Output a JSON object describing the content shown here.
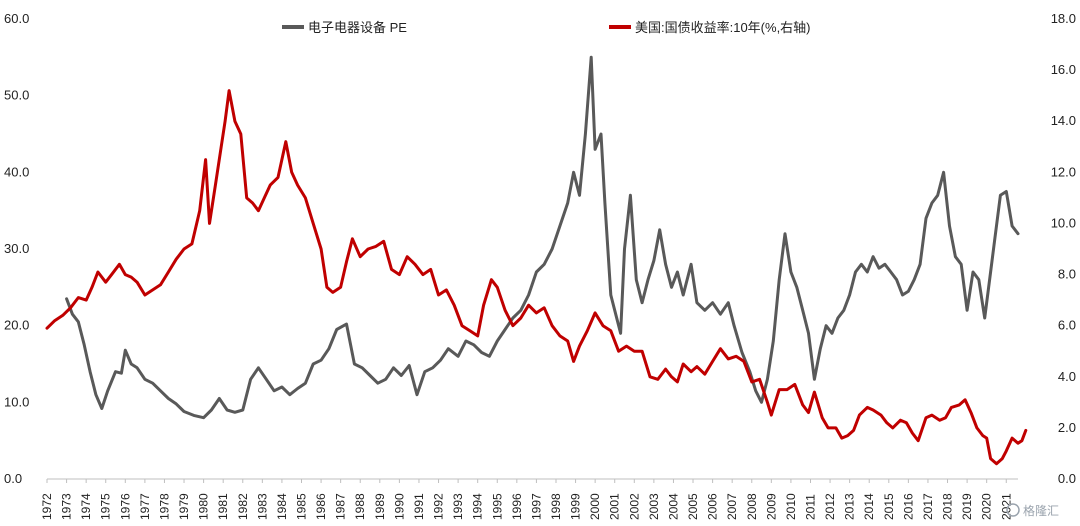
{
  "chart_data": {
    "type": "line",
    "title": "",
    "xlabel": "",
    "ylabel": "",
    "x_ticks": [
      "1972",
      "1973",
      "1974",
      "1975",
      "1976",
      "1977",
      "1978",
      "1979",
      "1980",
      "1981",
      "1982",
      "1983",
      "1984",
      "1985",
      "1986",
      "1987",
      "1988",
      "1989",
      "1990",
      "1991",
      "1992",
      "1993",
      "1994",
      "1995",
      "1996",
      "1997",
      "1998",
      "1999",
      "2000",
      "2001",
      "2002",
      "2003",
      "2004",
      "2005",
      "2006",
      "2007",
      "2008",
      "2009",
      "2010",
      "2011",
      "2012",
      "2013",
      "2014",
      "2015",
      "2016",
      "2017",
      "2018",
      "2019",
      "2020",
      "2021"
    ],
    "xlim": [
      1972.0,
      2021.6
    ],
    "y_left": {
      "lim": [
        0,
        60
      ],
      "ticks": [
        "0.0",
        "10.0",
        "20.0",
        "30.0",
        "40.0",
        "50.0",
        "60.0"
      ]
    },
    "y_right": {
      "lim": [
        0,
        18
      ],
      "ticks": [
        "0.0",
        "2.0",
        "4.0",
        "6.0",
        "8.0",
        "10.0",
        "12.0",
        "14.0",
        "16.0",
        "18.0"
      ]
    },
    "legend_position": "top",
    "series": [
      {
        "name": "电子电器设备 PE",
        "axis": "left",
        "color": "#595959",
        "points": [
          [
            1973.0,
            23.5
          ],
          [
            1973.3,
            21.5
          ],
          [
            1973.6,
            20.5
          ],
          [
            1973.9,
            17.5
          ],
          [
            1974.2,
            14.0
          ],
          [
            1974.5,
            11.0
          ],
          [
            1974.8,
            9.2
          ],
          [
            1975.1,
            11.5
          ],
          [
            1975.5,
            14.0
          ],
          [
            1975.8,
            13.8
          ],
          [
            1976.0,
            16.8
          ],
          [
            1976.3,
            15.0
          ],
          [
            1976.6,
            14.5
          ],
          [
            1977.0,
            13.0
          ],
          [
            1977.4,
            12.5
          ],
          [
            1977.8,
            11.5
          ],
          [
            1978.2,
            10.5
          ],
          [
            1978.6,
            9.8
          ],
          [
            1979.0,
            8.8
          ],
          [
            1979.5,
            8.3
          ],
          [
            1980.0,
            8.0
          ],
          [
            1980.4,
            9.0
          ],
          [
            1980.8,
            10.5
          ],
          [
            1981.2,
            9.0
          ],
          [
            1981.6,
            8.7
          ],
          [
            1982.0,
            9.0
          ],
          [
            1982.4,
            13.0
          ],
          [
            1982.8,
            14.5
          ],
          [
            1983.2,
            13.0
          ],
          [
            1983.6,
            11.5
          ],
          [
            1984.0,
            12.0
          ],
          [
            1984.4,
            11.0
          ],
          [
            1984.8,
            11.8
          ],
          [
            1985.2,
            12.5
          ],
          [
            1985.6,
            15.0
          ],
          [
            1986.0,
            15.5
          ],
          [
            1986.4,
            17.0
          ],
          [
            1986.8,
            19.5
          ],
          [
            1987.3,
            20.2
          ],
          [
            1987.7,
            15.0
          ],
          [
            1988.1,
            14.5
          ],
          [
            1988.5,
            13.5
          ],
          [
            1988.9,
            12.5
          ],
          [
            1989.3,
            13.0
          ],
          [
            1989.7,
            14.5
          ],
          [
            1990.1,
            13.5
          ],
          [
            1990.5,
            14.8
          ],
          [
            1990.9,
            11.0
          ],
          [
            1991.3,
            14.0
          ],
          [
            1991.7,
            14.5
          ],
          [
            1992.1,
            15.5
          ],
          [
            1992.5,
            17.0
          ],
          [
            1993.0,
            16.0
          ],
          [
            1993.4,
            18.0
          ],
          [
            1993.8,
            17.5
          ],
          [
            1994.2,
            16.5
          ],
          [
            1994.6,
            16.0
          ],
          [
            1995.0,
            18.0
          ],
          [
            1995.4,
            19.5
          ],
          [
            1995.8,
            21.0
          ],
          [
            1996.2,
            22.0
          ],
          [
            1996.6,
            24.0
          ],
          [
            1997.0,
            27.0
          ],
          [
            1997.4,
            28.0
          ],
          [
            1997.8,
            30.0
          ],
          [
            1998.2,
            33.0
          ],
          [
            1998.6,
            36.0
          ],
          [
            1998.9,
            40.0
          ],
          [
            1999.2,
            37.0
          ],
          [
            1999.5,
            45.0
          ],
          [
            1999.8,
            55.0
          ],
          [
            2000.0,
            43.0
          ],
          [
            2000.3,
            45.0
          ],
          [
            2000.5,
            36.0
          ],
          [
            2000.8,
            24.0
          ],
          [
            2001.0,
            22.0
          ],
          [
            2001.3,
            19.0
          ],
          [
            2001.5,
            30.0
          ],
          [
            2001.8,
            37.0
          ],
          [
            2002.1,
            26.0
          ],
          [
            2002.4,
            23.0
          ],
          [
            2002.7,
            26.0
          ],
          [
            2003.0,
            28.5
          ],
          [
            2003.3,
            32.5
          ],
          [
            2003.6,
            28.0
          ],
          [
            2003.9,
            25.0
          ],
          [
            2004.2,
            27.0
          ],
          [
            2004.5,
            24.0
          ],
          [
            2004.9,
            28.0
          ],
          [
            2005.2,
            23.0
          ],
          [
            2005.6,
            22.0
          ],
          [
            2006.0,
            23.0
          ],
          [
            2006.4,
            21.5
          ],
          [
            2006.8,
            23.0
          ],
          [
            2007.1,
            20.0
          ],
          [
            2007.5,
            16.5
          ],
          [
            2007.9,
            14.0
          ],
          [
            2008.2,
            11.5
          ],
          [
            2008.5,
            10.0
          ],
          [
            2008.8,
            13.0
          ],
          [
            2009.1,
            18.0
          ],
          [
            2009.4,
            26.0
          ],
          [
            2009.7,
            32.0
          ],
          [
            2010.0,
            27.0
          ],
          [
            2010.3,
            25.0
          ],
          [
            2010.6,
            22.0
          ],
          [
            2010.9,
            19.0
          ],
          [
            2011.2,
            13.0
          ],
          [
            2011.5,
            17.0
          ],
          [
            2011.8,
            20.0
          ],
          [
            2012.1,
            19.0
          ],
          [
            2012.4,
            21.0
          ],
          [
            2012.7,
            22.0
          ],
          [
            2013.0,
            24.0
          ],
          [
            2013.3,
            27.0
          ],
          [
            2013.6,
            28.0
          ],
          [
            2013.9,
            27.0
          ],
          [
            2014.2,
            29.0
          ],
          [
            2014.5,
            27.5
          ],
          [
            2014.8,
            28.0
          ],
          [
            2015.1,
            27.0
          ],
          [
            2015.4,
            26.0
          ],
          [
            2015.7,
            24.0
          ],
          [
            2016.0,
            24.5
          ],
          [
            2016.3,
            26.0
          ],
          [
            2016.6,
            28.0
          ],
          [
            2016.9,
            34.0
          ],
          [
            2017.2,
            36.0
          ],
          [
            2017.5,
            37.0
          ],
          [
            2017.8,
            40.0
          ],
          [
            2018.1,
            33.0
          ],
          [
            2018.4,
            29.0
          ],
          [
            2018.7,
            28.0
          ],
          [
            2019.0,
            22.0
          ],
          [
            2019.3,
            27.0
          ],
          [
            2019.6,
            26.0
          ],
          [
            2019.9,
            21.0
          ],
          [
            2020.2,
            27.0
          ],
          [
            2020.4,
            31.0
          ],
          [
            2020.7,
            37.0
          ],
          [
            2021.0,
            37.5
          ],
          [
            2021.3,
            33.0
          ],
          [
            2021.6,
            32.0
          ]
        ]
      },
      {
        "name": "美国:国债收益率:10年(%,右轴)",
        "axis": "right",
        "color": "#c00000",
        "points": [
          [
            1972.0,
            5.9
          ],
          [
            1972.4,
            6.2
          ],
          [
            1972.8,
            6.4
          ],
          [
            1973.2,
            6.7
          ],
          [
            1973.6,
            7.1
          ],
          [
            1974.0,
            7.0
          ],
          [
            1974.3,
            7.5
          ],
          [
            1974.6,
            8.1
          ],
          [
            1975.0,
            7.7
          ],
          [
            1975.3,
            8.0
          ],
          [
            1975.7,
            8.4
          ],
          [
            1976.0,
            8.0
          ],
          [
            1976.3,
            7.9
          ],
          [
            1976.6,
            7.7
          ],
          [
            1977.0,
            7.2
          ],
          [
            1977.4,
            7.4
          ],
          [
            1977.8,
            7.6
          ],
          [
            1978.2,
            8.1
          ],
          [
            1978.6,
            8.6
          ],
          [
            1979.0,
            9.0
          ],
          [
            1979.4,
            9.2
          ],
          [
            1979.8,
            10.5
          ],
          [
            1980.1,
            12.5
          ],
          [
            1980.3,
            10.0
          ],
          [
            1980.6,
            11.5
          ],
          [
            1980.9,
            13.0
          ],
          [
            1981.1,
            14.0
          ],
          [
            1981.3,
            15.2
          ],
          [
            1981.6,
            14.0
          ],
          [
            1981.9,
            13.5
          ],
          [
            1982.2,
            11.0
          ],
          [
            1982.5,
            10.8
          ],
          [
            1982.8,
            10.5
          ],
          [
            1983.1,
            11.0
          ],
          [
            1983.4,
            11.5
          ],
          [
            1983.8,
            11.8
          ],
          [
            1984.2,
            13.2
          ],
          [
            1984.5,
            12.0
          ],
          [
            1984.8,
            11.5
          ],
          [
            1985.2,
            11.0
          ],
          [
            1985.6,
            10.0
          ],
          [
            1986.0,
            9.0
          ],
          [
            1986.3,
            7.5
          ],
          [
            1986.6,
            7.3
          ],
          [
            1987.0,
            7.5
          ],
          [
            1987.3,
            8.5
          ],
          [
            1987.6,
            9.4
          ],
          [
            1988.0,
            8.7
          ],
          [
            1988.4,
            9.0
          ],
          [
            1988.8,
            9.1
          ],
          [
            1989.2,
            9.3
          ],
          [
            1989.6,
            8.2
          ],
          [
            1990.0,
            8.0
          ],
          [
            1990.4,
            8.7
          ],
          [
            1990.8,
            8.4
          ],
          [
            1991.2,
            8.0
          ],
          [
            1991.6,
            8.2
          ],
          [
            1992.0,
            7.2
          ],
          [
            1992.4,
            7.4
          ],
          [
            1992.8,
            6.8
          ],
          [
            1993.2,
            6.0
          ],
          [
            1993.6,
            5.8
          ],
          [
            1994.0,
            5.6
          ],
          [
            1994.3,
            6.8
          ],
          [
            1994.7,
            7.8
          ],
          [
            1995.0,
            7.5
          ],
          [
            1995.4,
            6.6
          ],
          [
            1995.8,
            6.0
          ],
          [
            1996.2,
            6.3
          ],
          [
            1996.6,
            6.8
          ],
          [
            1997.0,
            6.5
          ],
          [
            1997.4,
            6.7
          ],
          [
            1997.8,
            6.0
          ],
          [
            1998.2,
            5.6
          ],
          [
            1998.6,
            5.4
          ],
          [
            1998.9,
            4.6
          ],
          [
            1999.2,
            5.2
          ],
          [
            1999.6,
            5.8
          ],
          [
            2000.0,
            6.5
          ],
          [
            2000.4,
            6.0
          ],
          [
            2000.8,
            5.8
          ],
          [
            2001.2,
            5.0
          ],
          [
            2001.6,
            5.2
          ],
          [
            2002.0,
            5.0
          ],
          [
            2002.4,
            5.0
          ],
          [
            2002.8,
            4.0
          ],
          [
            2003.2,
            3.9
          ],
          [
            2003.6,
            4.3
          ],
          [
            2003.9,
            4.0
          ],
          [
            2004.2,
            3.8
          ],
          [
            2004.5,
            4.5
          ],
          [
            2004.9,
            4.2
          ],
          [
            2005.2,
            4.4
          ],
          [
            2005.6,
            4.1
          ],
          [
            2006.0,
            4.6
          ],
          [
            2006.4,
            5.1
          ],
          [
            2006.8,
            4.7
          ],
          [
            2007.2,
            4.8
          ],
          [
            2007.6,
            4.6
          ],
          [
            2008.0,
            3.8
          ],
          [
            2008.4,
            3.9
          ],
          [
            2008.8,
            3.0
          ],
          [
            2009.0,
            2.5
          ],
          [
            2009.4,
            3.5
          ],
          [
            2009.8,
            3.5
          ],
          [
            2010.2,
            3.7
          ],
          [
            2010.6,
            2.9
          ],
          [
            2010.9,
            2.6
          ],
          [
            2011.2,
            3.4
          ],
          [
            2011.6,
            2.4
          ],
          [
            2011.9,
            2.0
          ],
          [
            2012.3,
            2.0
          ],
          [
            2012.6,
            1.6
          ],
          [
            2012.9,
            1.7
          ],
          [
            2013.2,
            1.9
          ],
          [
            2013.5,
            2.5
          ],
          [
            2013.9,
            2.8
          ],
          [
            2014.2,
            2.7
          ],
          [
            2014.6,
            2.5
          ],
          [
            2014.9,
            2.2
          ],
          [
            2015.2,
            2.0
          ],
          [
            2015.6,
            2.3
          ],
          [
            2015.9,
            2.2
          ],
          [
            2016.2,
            1.8
          ],
          [
            2016.5,
            1.5
          ],
          [
            2016.9,
            2.4
          ],
          [
            2017.2,
            2.5
          ],
          [
            2017.6,
            2.3
          ],
          [
            2017.9,
            2.4
          ],
          [
            2018.2,
            2.8
          ],
          [
            2018.6,
            2.9
          ],
          [
            2018.9,
            3.1
          ],
          [
            2019.2,
            2.6
          ],
          [
            2019.5,
            2.0
          ],
          [
            2019.8,
            1.7
          ],
          [
            2020.0,
            1.6
          ],
          [
            2020.2,
            0.8
          ],
          [
            2020.5,
            0.6
          ],
          [
            2020.8,
            0.8
          ],
          [
            2021.0,
            1.1
          ],
          [
            2021.3,
            1.6
          ],
          [
            2021.6,
            1.4
          ],
          [
            2021.8,
            1.5
          ],
          [
            2022.0,
            1.9
          ]
        ]
      }
    ]
  },
  "watermark": "格隆汇"
}
